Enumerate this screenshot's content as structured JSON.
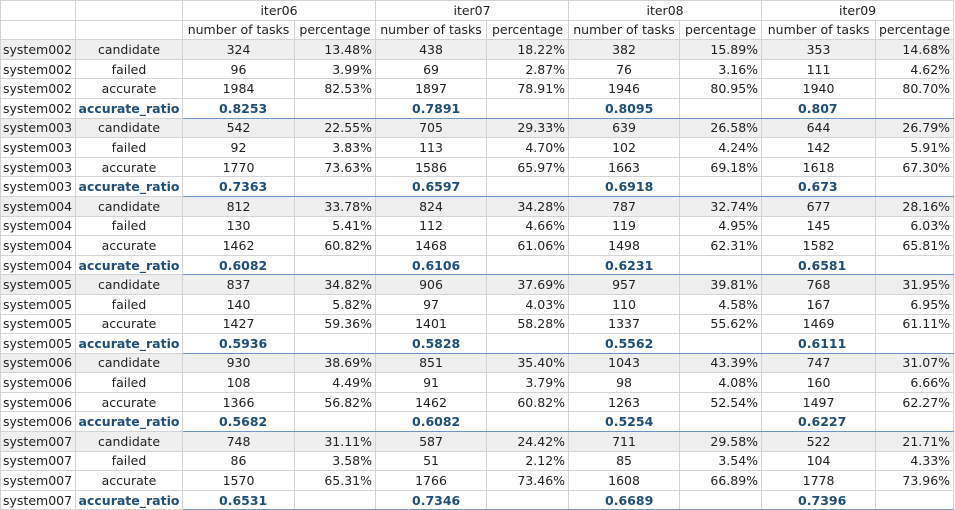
{
  "iterations": [
    "iter06",
    "iter07",
    "iter08",
    "iter09"
  ],
  "subheaders": {
    "count": "number of tasks",
    "pct": "percentage"
  },
  "rows": [
    {
      "system": "system002",
      "metric": "candidate",
      "type": "gray",
      "vals": [
        [
          "324",
          "13.48%"
        ],
        [
          "438",
          "18.22%"
        ],
        [
          "382",
          "15.89%"
        ],
        [
          "353",
          "14.68%"
        ]
      ]
    },
    {
      "system": "system002",
      "metric": "failed",
      "type": "",
      "vals": [
        [
          "96",
          "3.99%"
        ],
        [
          "69",
          "2.87%"
        ],
        [
          "76",
          "3.16%"
        ],
        [
          "111",
          "4.62%"
        ]
      ]
    },
    {
      "system": "system002",
      "metric": "accurate",
      "type": "",
      "vals": [
        [
          "1984",
          "82.53%"
        ],
        [
          "1897",
          "78.91%"
        ],
        [
          "1946",
          "80.95%"
        ],
        [
          "1940",
          "80.70%"
        ]
      ]
    },
    {
      "system": "system002",
      "metric": "accurate_ratio",
      "type": "ratio",
      "vals": [
        [
          "0.8253",
          ""
        ],
        [
          "0.7891",
          ""
        ],
        [
          "0.8095",
          ""
        ],
        [
          "0.807",
          ""
        ]
      ]
    },
    {
      "system": "system003",
      "metric": "candidate",
      "type": "gray",
      "vals": [
        [
          "542",
          "22.55%"
        ],
        [
          "705",
          "29.33%"
        ],
        [
          "639",
          "26.58%"
        ],
        [
          "644",
          "26.79%"
        ]
      ]
    },
    {
      "system": "system003",
      "metric": "failed",
      "type": "",
      "vals": [
        [
          "92",
          "3.83%"
        ],
        [
          "113",
          "4.70%"
        ],
        [
          "102",
          "4.24%"
        ],
        [
          "142",
          "5.91%"
        ]
      ]
    },
    {
      "system": "system003",
      "metric": "accurate",
      "type": "",
      "vals": [
        [
          "1770",
          "73.63%"
        ],
        [
          "1586",
          "65.97%"
        ],
        [
          "1663",
          "69.18%"
        ],
        [
          "1618",
          "67.30%"
        ]
      ]
    },
    {
      "system": "system003",
      "metric": "accurate_ratio",
      "type": "ratio",
      "vals": [
        [
          "0.7363",
          ""
        ],
        [
          "0.6597",
          ""
        ],
        [
          "0.6918",
          ""
        ],
        [
          "0.673",
          ""
        ]
      ]
    },
    {
      "system": "system004",
      "metric": "candidate",
      "type": "gray",
      "vals": [
        [
          "812",
          "33.78%"
        ],
        [
          "824",
          "34.28%"
        ],
        [
          "787",
          "32.74%"
        ],
        [
          "677",
          "28.16%"
        ]
      ]
    },
    {
      "system": "system004",
      "metric": "failed",
      "type": "",
      "vals": [
        [
          "130",
          "5.41%"
        ],
        [
          "112",
          "4.66%"
        ],
        [
          "119",
          "4.95%"
        ],
        [
          "145",
          "6.03%"
        ]
      ]
    },
    {
      "system": "system004",
      "metric": "accurate",
      "type": "",
      "vals": [
        [
          "1462",
          "60.82%"
        ],
        [
          "1468",
          "61.06%"
        ],
        [
          "1498",
          "62.31%"
        ],
        [
          "1582",
          "65.81%"
        ]
      ]
    },
    {
      "system": "system004",
      "metric": "accurate_ratio",
      "type": "ratio",
      "vals": [
        [
          "0.6082",
          ""
        ],
        [
          "0.6106",
          ""
        ],
        [
          "0.6231",
          ""
        ],
        [
          "0.6581",
          ""
        ]
      ]
    },
    {
      "system": "system005",
      "metric": "candidate",
      "type": "gray",
      "vals": [
        [
          "837",
          "34.82%"
        ],
        [
          "906",
          "37.69%"
        ],
        [
          "957",
          "39.81%"
        ],
        [
          "768",
          "31.95%"
        ]
      ]
    },
    {
      "system": "system005",
      "metric": "failed",
      "type": "",
      "vals": [
        [
          "140",
          "5.82%"
        ],
        [
          "97",
          "4.03%"
        ],
        [
          "110",
          "4.58%"
        ],
        [
          "167",
          "6.95%"
        ]
      ]
    },
    {
      "system": "system005",
      "metric": "accurate",
      "type": "",
      "vals": [
        [
          "1427",
          "59.36%"
        ],
        [
          "1401",
          "58.28%"
        ],
        [
          "1337",
          "55.62%"
        ],
        [
          "1469",
          "61.11%"
        ]
      ]
    },
    {
      "system": "system005",
      "metric": "accurate_ratio",
      "type": "ratio",
      "vals": [
        [
          "0.5936",
          ""
        ],
        [
          "0.5828",
          ""
        ],
        [
          "0.5562",
          ""
        ],
        [
          "0.6111",
          ""
        ]
      ]
    },
    {
      "system": "system006",
      "metric": "candidate",
      "type": "gray",
      "vals": [
        [
          "930",
          "38.69%"
        ],
        [
          "851",
          "35.40%"
        ],
        [
          "1043",
          "43.39%"
        ],
        [
          "747",
          "31.07%"
        ]
      ]
    },
    {
      "system": "system006",
      "metric": "failed",
      "type": "",
      "vals": [
        [
          "108",
          "4.49%"
        ],
        [
          "91",
          "3.79%"
        ],
        [
          "98",
          "4.08%"
        ],
        [
          "160",
          "6.66%"
        ]
      ]
    },
    {
      "system": "system006",
      "metric": "accurate",
      "type": "",
      "vals": [
        [
          "1366",
          "56.82%"
        ],
        [
          "1462",
          "60.82%"
        ],
        [
          "1263",
          "52.54%"
        ],
        [
          "1497",
          "62.27%"
        ]
      ]
    },
    {
      "system": "system006",
      "metric": "accurate_ratio",
      "type": "ratio",
      "vals": [
        [
          "0.5682",
          ""
        ],
        [
          "0.6082",
          ""
        ],
        [
          "0.5254",
          ""
        ],
        [
          "0.6227",
          ""
        ]
      ]
    },
    {
      "system": "system007",
      "metric": "candidate",
      "type": "gray",
      "vals": [
        [
          "748",
          "31.11%"
        ],
        [
          "587",
          "24.42%"
        ],
        [
          "711",
          "29.58%"
        ],
        [
          "522",
          "21.71%"
        ]
      ]
    },
    {
      "system": "system007",
      "metric": "failed",
      "type": "",
      "vals": [
        [
          "86",
          "3.58%"
        ],
        [
          "51",
          "2.12%"
        ],
        [
          "85",
          "3.54%"
        ],
        [
          "104",
          "4.33%"
        ]
      ]
    },
    {
      "system": "system007",
      "metric": "accurate",
      "type": "",
      "vals": [
        [
          "1570",
          "65.31%"
        ],
        [
          "1766",
          "73.46%"
        ],
        [
          "1608",
          "66.89%"
        ],
        [
          "1778",
          "73.96%"
        ]
      ]
    },
    {
      "system": "system007",
      "metric": "accurate_ratio",
      "type": "ratio",
      "vals": [
        [
          "0.6531",
          ""
        ],
        [
          "0.7346",
          ""
        ],
        [
          "0.6689",
          ""
        ],
        [
          "0.7396",
          ""
        ]
      ]
    }
  ]
}
